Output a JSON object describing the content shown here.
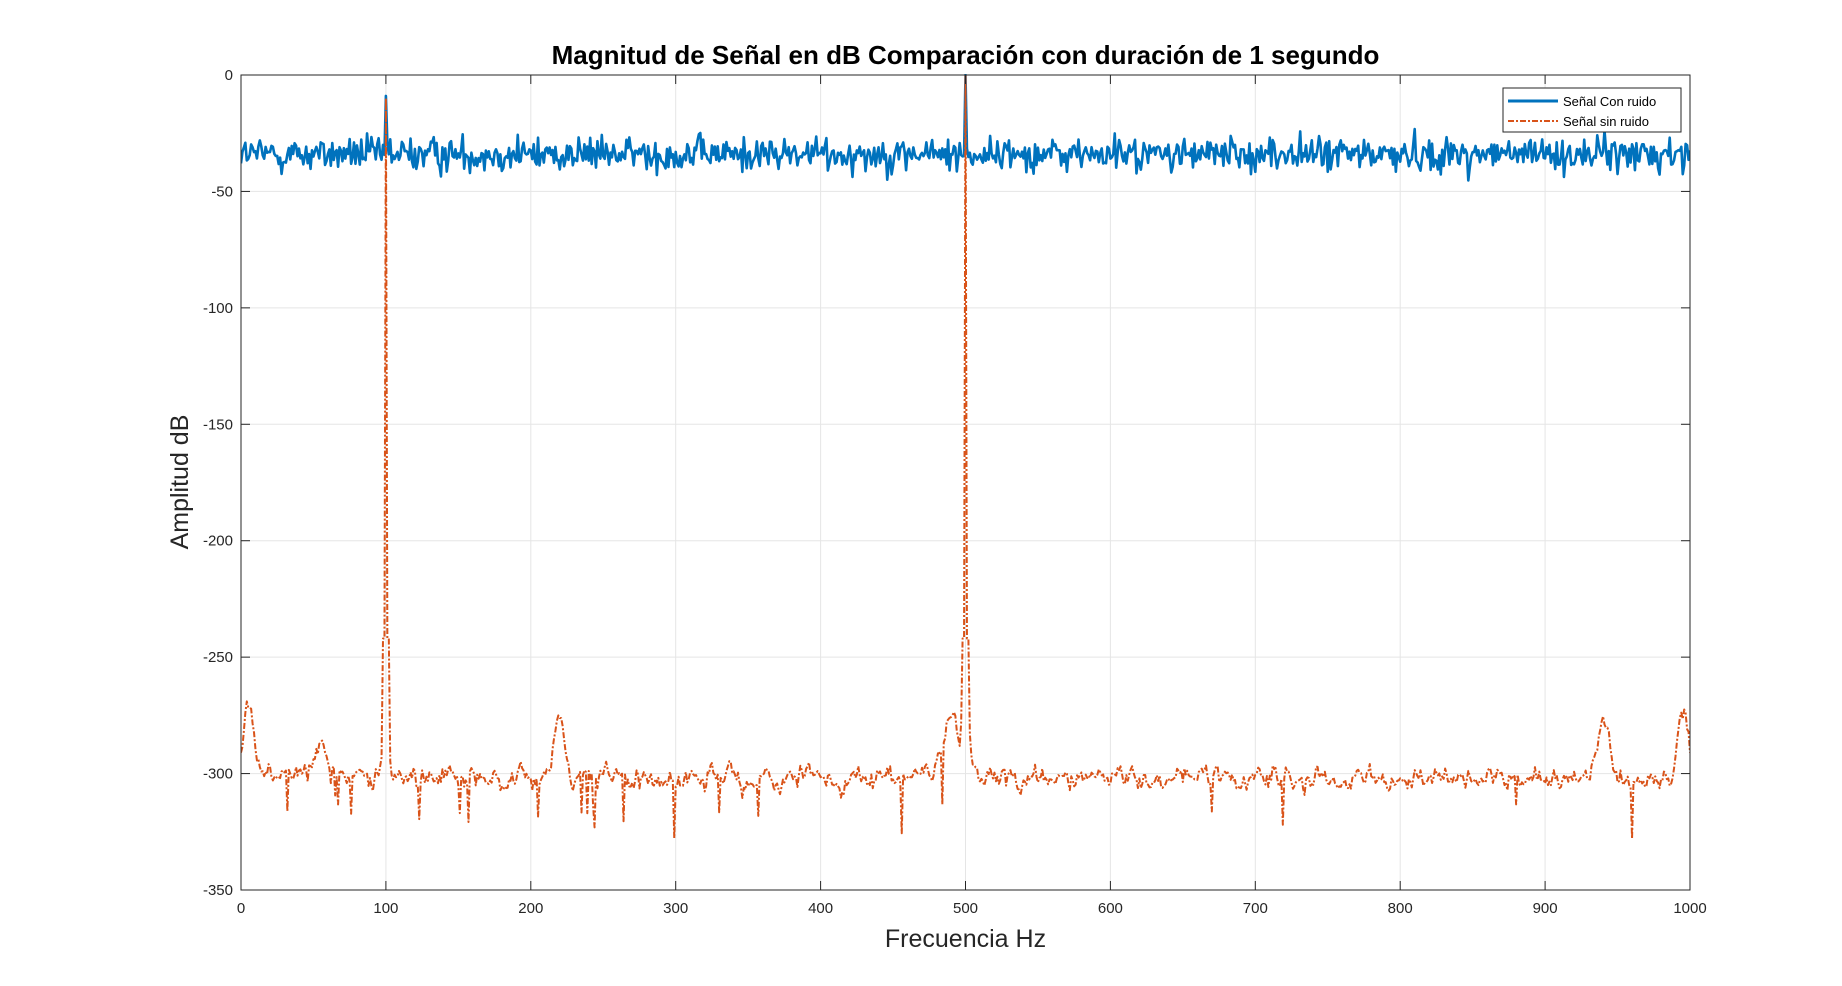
{
  "chart_data": {
    "type": "line",
    "title": "Magnitud de Señal en dB Comparación con duración de 1 segundo",
    "xlabel": "Frecuencia Hz",
    "ylabel": "Amplitud dB",
    "xlim": [
      0,
      1000
    ],
    "ylim": [
      -350,
      0
    ],
    "xticks": [
      0,
      100,
      200,
      300,
      400,
      500,
      600,
      700,
      800,
      900,
      1000
    ],
    "yticks": [
      0,
      -50,
      -100,
      -150,
      -200,
      -250,
      -300,
      -350
    ],
    "grid": true,
    "legend_position": "top-right",
    "series": [
      {
        "name": "Señal Con ruido",
        "color": "#0072BD",
        "line_style": "solid",
        "noise_baseline_db": -34,
        "noise_range_db": [
          -53,
          -22
        ],
        "peaks": [
          {
            "x": 100,
            "y": -9
          },
          {
            "x": 500,
            "y": 0
          }
        ]
      },
      {
        "name": "Señal sin ruido",
        "color": "#D95319",
        "line_style": "dash-dot",
        "noise_baseline_db": -302,
        "noise_range_db": [
          -328,
          -272
        ],
        "peaks": [
          {
            "x": 100,
            "y": -10
          },
          {
            "x": 500,
            "y": 0
          }
        ],
        "local_bumps": [
          {
            "x": 5,
            "y": -272
          },
          {
            "x": 55,
            "y": -286
          },
          {
            "x": 220,
            "y": -274
          },
          {
            "x": 490,
            "y": -275
          },
          {
            "x": 940,
            "y": -278
          },
          {
            "x": 995,
            "y": -272
          }
        ]
      }
    ]
  }
}
